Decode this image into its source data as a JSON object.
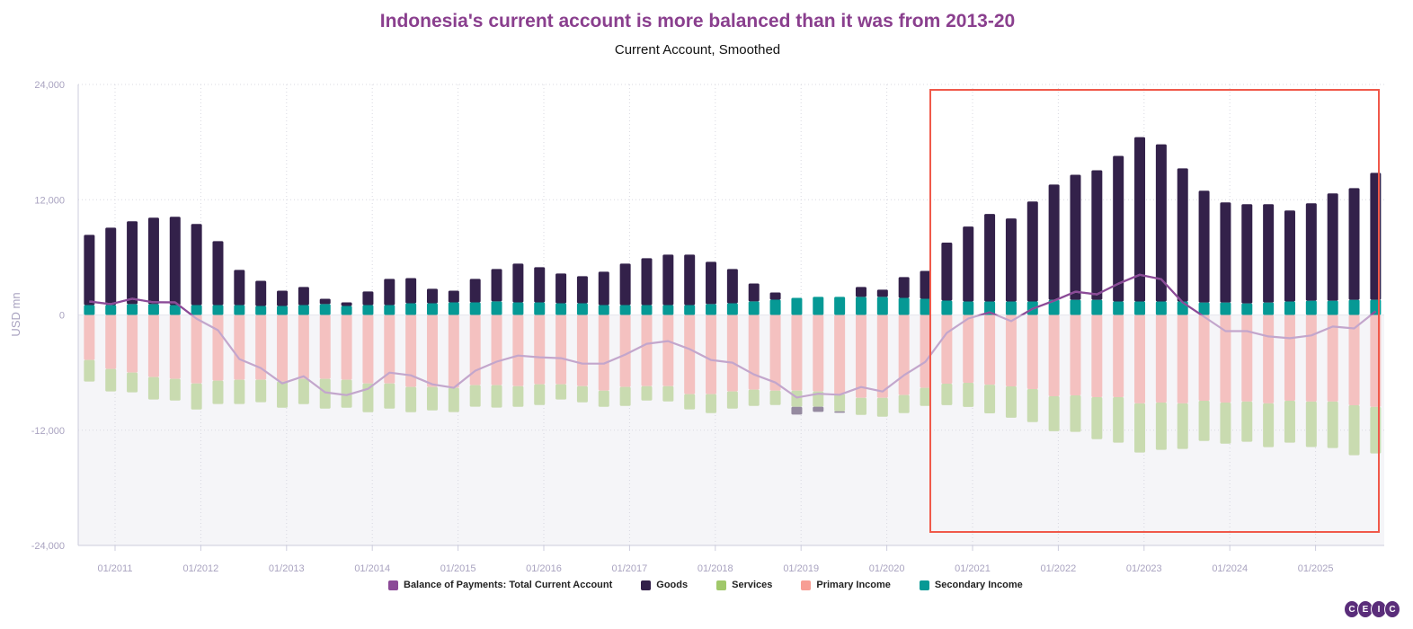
{
  "chart_data": {
    "type": "bar",
    "stacked": true,
    "title": "Indonesia's current account is more balanced than it was from 2013-20",
    "subtitle": "Current Account, Smoothed",
    "ylabel": "USD mn",
    "ylim": [
      -24000,
      24000
    ],
    "yticks": [
      "24,000",
      "12,000",
      "0",
      "-12,000",
      "-24,000"
    ],
    "xticks": [
      "01/2011",
      "01/2012",
      "01/2013",
      "01/2014",
      "01/2015",
      "01/2016",
      "01/2017",
      "01/2018",
      "01/2019",
      "01/2020",
      "01/2021",
      "01/2022",
      "01/2023",
      "01/2024",
      "01/2025"
    ],
    "grid": true,
    "legend_position": "bottom",
    "x": [
      "09/2010",
      "12/2010",
      "03/2011",
      "06/2011",
      "09/2011",
      "12/2011",
      "03/2012",
      "06/2012",
      "09/2012",
      "12/2012",
      "03/2013",
      "06/2013",
      "09/2013",
      "12/2013",
      "03/2014",
      "06/2014",
      "09/2014",
      "12/2014",
      "03/2015",
      "06/2015",
      "09/2015",
      "12/2015",
      "03/2016",
      "06/2016",
      "09/2016",
      "12/2016",
      "03/2017",
      "06/2017",
      "09/2017",
      "12/2017",
      "03/2018",
      "06/2018",
      "09/2018",
      "12/2018",
      "03/2019",
      "06/2019",
      "09/2019",
      "12/2019",
      "03/2020",
      "06/2020",
      "09/2020",
      "12/2020",
      "03/2021",
      "06/2021",
      "09/2021",
      "12/2021",
      "03/2022",
      "06/2022",
      "09/2022",
      "12/2022",
      "03/2023",
      "06/2023",
      "09/2023",
      "12/2023",
      "03/2024",
      "06/2024",
      "09/2024",
      "12/2024",
      "03/2025",
      "06/2025",
      "09/2025"
    ],
    "series": [
      {
        "name": "Balance of Payments: Total Current Account",
        "type": "line",
        "color": "#8b4a97",
        "color_below_zero": "#c3a6cc",
        "values": [
          1400,
          1120,
          1690,
          1320,
          1310,
          -380,
          -1590,
          -4590,
          -5530,
          -7130,
          -6380,
          -8060,
          -8350,
          -7690,
          -6010,
          -6290,
          -7220,
          -7590,
          -5810,
          -4870,
          -4230,
          -4410,
          -4500,
          -5070,
          -5070,
          -4130,
          -3000,
          -2720,
          -3560,
          -4690,
          -4970,
          -6190,
          -7040,
          -8600,
          -8210,
          -8310,
          -7500,
          -7970,
          -6280,
          -4880,
          -1860,
          -370,
          270,
          -650,
          650,
          1480,
          2420,
          2140,
          3260,
          4180,
          3720,
          1310,
          -190,
          -1680,
          -1680,
          -2240,
          -2420,
          -2130,
          -1210,
          -1400,
          370
        ]
      },
      {
        "name": "Goods",
        "type": "bar",
        "color": "#33214a",
        "color_negative": "#958aa0",
        "values": [
          7310,
          8060,
          8620,
          9000,
          9190,
          8440,
          6660,
          3660,
          2620,
          1590,
          1880,
          560,
          370,
          1410,
          2720,
          2620,
          1500,
          1220,
          2440,
          3370,
          4030,
          3660,
          3090,
          2810,
          3470,
          4310,
          4880,
          5250,
          5250,
          4400,
          3560,
          1870,
          750,
          -810,
          -530,
          -160,
          1030,
          750,
          2160,
          2900,
          6030,
          7810,
          9110,
          8650,
          10410,
          12000,
          13020,
          13490,
          15160,
          17110,
          16370,
          13860,
          11630,
          10420,
          10320,
          10230,
          9480,
          10140,
          11160,
          11630,
          13210
        ]
      },
      {
        "name": "Services",
        "type": "bar",
        "color": "#a0c86a",
        "bar_color": "#c9dbb0",
        "values": [
          -2250,
          -2340,
          -2060,
          -2340,
          -2250,
          -2720,
          -2440,
          -2530,
          -2340,
          -2720,
          -2630,
          -3090,
          -2910,
          -3000,
          -2630,
          -2630,
          -2440,
          -2530,
          -2250,
          -2340,
          -2160,
          -2160,
          -1590,
          -1690,
          -1690,
          -1970,
          -1500,
          -1590,
          -1590,
          -1970,
          -1780,
          -1690,
          -1500,
          -1690,
          -1590,
          -1780,
          -1780,
          -1970,
          -1880,
          -1880,
          -2230,
          -2510,
          -2980,
          -3260,
          -3440,
          -3630,
          -3810,
          -4370,
          -4740,
          -5120,
          -4930,
          -4740,
          -4190,
          -4280,
          -4190,
          -4560,
          -4370,
          -4740,
          -4840,
          -5210,
          -4840
        ]
      },
      {
        "name": "Primary Income",
        "type": "bar",
        "color": "#f79e94",
        "bar_color": "#f4c1c0",
        "values": [
          -4690,
          -5630,
          -6000,
          -6470,
          -6660,
          -7130,
          -6840,
          -6750,
          -6750,
          -6940,
          -6660,
          -6660,
          -6750,
          -7130,
          -7130,
          -7500,
          -7500,
          -7590,
          -7310,
          -7310,
          -7410,
          -7220,
          -7220,
          -7410,
          -7880,
          -7500,
          -7410,
          -7410,
          -8250,
          -8250,
          -7970,
          -7780,
          -7880,
          -7880,
          -7970,
          -8250,
          -8630,
          -8630,
          -8340,
          -7590,
          -7160,
          -7070,
          -7260,
          -7440,
          -7720,
          -8470,
          -8370,
          -8560,
          -8560,
          -9210,
          -9120,
          -9210,
          -8930,
          -9120,
          -9020,
          -9210,
          -8930,
          -9020,
          -9020,
          -9400,
          -9580
        ]
      },
      {
        "name": "Secondary Income",
        "type": "bar",
        "color": "#069995",
        "values": [
          1030,
          1030,
          1130,
          1130,
          1030,
          1030,
          1030,
          1030,
          940,
          940,
          1030,
          1130,
          940,
          1030,
          1030,
          1220,
          1220,
          1310,
          1310,
          1410,
          1310,
          1310,
          1220,
          1220,
          1030,
          1030,
          1030,
          1030,
          1030,
          1130,
          1220,
          1410,
          1590,
          1780,
          1880,
          1880,
          1880,
          1880,
          1780,
          1690,
          1500,
          1400,
          1400,
          1400,
          1400,
          1580,
          1580,
          1580,
          1400,
          1400,
          1400,
          1400,
          1300,
          1300,
          1210,
          1300,
          1400,
          1490,
          1490,
          1580,
          1580
        ]
      }
    ]
  },
  "logo": {
    "letters": [
      "C",
      "E",
      "I",
      "C"
    ]
  }
}
